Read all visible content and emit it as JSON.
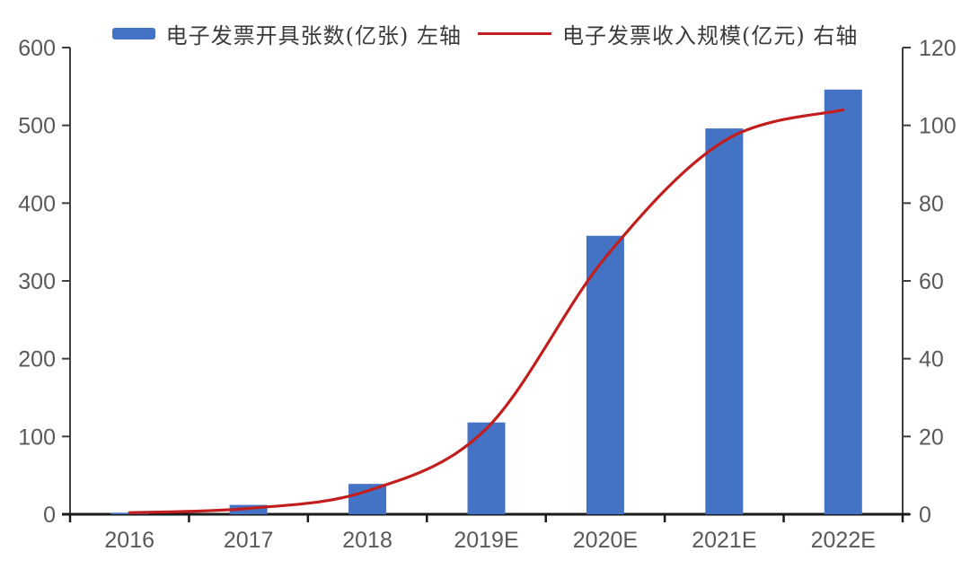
{
  "legend": {
    "bar_label": "电子发票开具张数(亿张) 左轴",
    "line_label": "电子发票收入规模(亿元) 右轴"
  },
  "colors": {
    "bar": "#4472C4",
    "line": "#C21E1E",
    "y_axis": "#3f3f3f",
    "x_axis": "#1a1a1a",
    "tick_label": "#595959"
  },
  "chart_data": {
    "type": "bar",
    "combo": true,
    "title": "",
    "xlabel": "",
    "ylabel_left": "电子发票开具张数(亿张)",
    "ylabel_right": "电子发票收入规模(亿元)",
    "legend_position": "top",
    "grid": false,
    "categories": [
      "2016",
      "2017",
      "2018",
      "2019E",
      "2020E",
      "2021E",
      "2022E"
    ],
    "series": [
      {
        "name": "电子发票开具张数(亿张)",
        "axis": "left",
        "type": "bar",
        "color": "#4472C4",
        "values": [
          2,
          12,
          39,
          118,
          358,
          496,
          546
        ]
      },
      {
        "name": "电子发票收入规模(亿元)",
        "axis": "right",
        "type": "line",
        "color": "#C21E1E",
        "values": [
          0.4,
          1.5,
          6,
          22,
          66,
          96,
          104
        ]
      }
    ],
    "left_axis": {
      "min": 0,
      "max": 600,
      "step": 100,
      "ylim": [
        0,
        600
      ],
      "ticks": [
        0,
        100,
        200,
        300,
        400,
        500,
        600
      ]
    },
    "right_axis": {
      "min": 0,
      "max": 120,
      "step": 20,
      "ylim": [
        0,
        120
      ],
      "ticks": [
        0,
        20,
        40,
        60,
        80,
        100,
        120
      ]
    }
  }
}
